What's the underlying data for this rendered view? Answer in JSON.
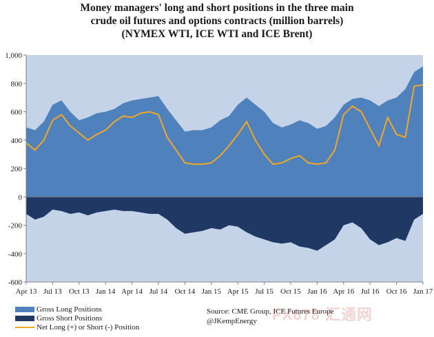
{
  "chart_data": {
    "type": "area",
    "title": "Money managers' long and short positions in the three main crude oil futures and options contracts (million barrels)",
    "title_lines": [
      "Money managers' long and short positions in the three main",
      "crude oil futures and options contracts (million barrels)"
    ],
    "subtitle": "(NYMEX WTI, ICE WTI and ICE Brent)",
    "xlabel": "",
    "ylabel": "",
    "ylim": [
      -600,
      1000
    ],
    "yticks": [
      -600,
      -400,
      -200,
      0,
      200,
      400,
      600,
      800,
      1000
    ],
    "ytick_labels": [
      "-600",
      "-400",
      "-200",
      "0",
      "200",
      "400",
      "600",
      "800",
      "1,000"
    ],
    "xtick_labels": [
      "Apr 13",
      "Jul 13",
      "Oct 13",
      "Jan 14",
      "Apr 14",
      "Jul 14",
      "Oct 14",
      "Jan 15",
      "Apr 15",
      "Jul 15",
      "Oct 15",
      "Jan 16",
      "Apr 16",
      "Jul 16",
      "Oct 16",
      "Jan 17"
    ],
    "x_start": "2013-04",
    "x_end": "2017-01",
    "grid": false,
    "legend_position": "bottom-left",
    "colors": {
      "long": "#4f81bd",
      "short": "#1f3864",
      "net": "#f5a623",
      "plot_bg": "#c5d3e8"
    },
    "x": [
      "2013-04",
      "2013-05",
      "2013-06",
      "2013-07",
      "2013-08",
      "2013-09",
      "2013-10",
      "2013-11",
      "2013-12",
      "2014-01",
      "2014-02",
      "2014-03",
      "2014-04",
      "2014-05",
      "2014-06",
      "2014-07",
      "2014-08",
      "2014-09",
      "2014-10",
      "2014-11",
      "2014-12",
      "2015-01",
      "2015-02",
      "2015-03",
      "2015-04",
      "2015-05",
      "2015-06",
      "2015-07",
      "2015-08",
      "2015-09",
      "2015-10",
      "2015-11",
      "2015-12",
      "2016-01",
      "2016-02",
      "2016-03",
      "2016-04",
      "2016-05",
      "2016-06",
      "2016-07",
      "2016-08",
      "2016-09",
      "2016-10",
      "2016-11",
      "2016-12",
      "2017-01"
    ],
    "series": [
      {
        "name": "Gross Long Positions",
        "values": [
          490,
          470,
          530,
          650,
          680,
          600,
          540,
          560,
          590,
          600,
          620,
          660,
          680,
          690,
          700,
          710,
          620,
          540,
          460,
          470,
          470,
          490,
          540,
          570,
          650,
          700,
          650,
          600,
          520,
          490,
          510,
          540,
          520,
          480,
          500,
          560,
          650,
          690,
          700,
          680,
          640,
          680,
          700,
          760,
          880,
          920
        ]
      },
      {
        "name": "Gross Short Positions",
        "values": [
          -120,
          -160,
          -140,
          -90,
          -100,
          -120,
          -110,
          -130,
          -110,
          -100,
          -90,
          -100,
          -100,
          -110,
          -120,
          -120,
          -160,
          -220,
          -260,
          -250,
          -240,
          -220,
          -230,
          -200,
          -210,
          -250,
          -280,
          -300,
          -320,
          -330,
          -320,
          -350,
          -360,
          -380,
          -340,
          -300,
          -200,
          -180,
          -220,
          -300,
          -340,
          -320,
          -290,
          -310,
          -160,
          -120
        ]
      },
      {
        "name": "Net Long (+) or Short (-) Position",
        "values": [
          380,
          330,
          400,
          540,
          580,
          500,
          450,
          400,
          440,
          470,
          530,
          570,
          560,
          590,
          600,
          580,
          420,
          330,
          240,
          230,
          230,
          240,
          290,
          360,
          440,
          530,
          400,
          300,
          230,
          240,
          270,
          290,
          240,
          230,
          240,
          330,
          580,
          640,
          600,
          480,
          360,
          560,
          440,
          420,
          780,
          790
        ]
      }
    ]
  },
  "legend": {
    "long": "Gross Long Positions",
    "short": "Gross Short Positions",
    "net": "Net Long (+) or Short (-) Position"
  },
  "source_text": "Source:  CME Group, ICE Futures Europe",
  "attribution": "@JKempEnergy",
  "watermark": "FX678 汇通网"
}
